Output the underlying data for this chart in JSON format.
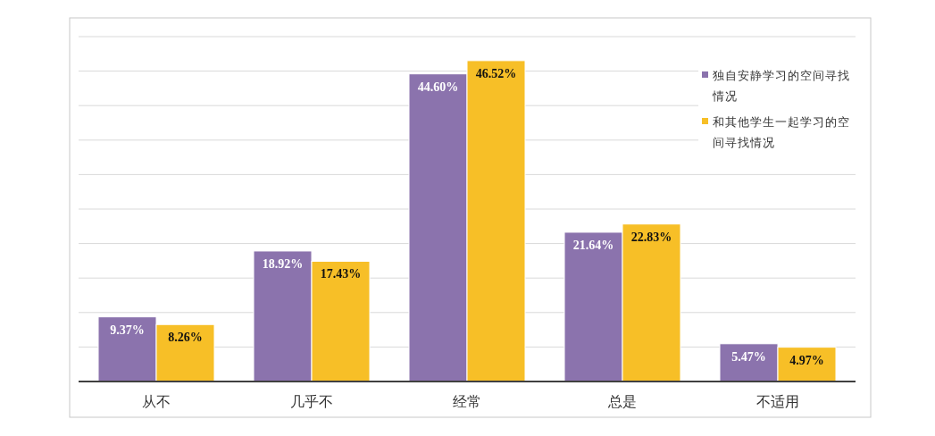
{
  "chart_data": {
    "type": "bar",
    "categories": [
      "从不",
      "几乎不",
      "经常",
      "总是",
      "不适用"
    ],
    "series": [
      {
        "name": "独自安静学习的空间寻找情况",
        "color": "#8b73ad",
        "values": [
          9.37,
          18.92,
          44.6,
          21.64,
          5.47
        ],
        "value_labels": [
          "9.37%",
          "18.92%",
          "44.60%",
          "21.64%",
          "5.47%"
        ]
      },
      {
        "name": "和其他学生一起学习的空间寻找情况",
        "color": "#f7bf27",
        "values": [
          8.26,
          17.43,
          46.52,
          22.83,
          4.97
        ],
        "value_labels": [
          "8.26%",
          "17.43%",
          "46.52%",
          "22.83%",
          "4.97%"
        ]
      }
    ],
    "ylim": [
      0,
      50
    ],
    "yticks": [
      {
        "value": 0,
        "label": null
      },
      {
        "value": 5,
        "label": null
      },
      {
        "value": 10,
        "label": null
      },
      {
        "value": 15,
        "label": null
      },
      {
        "value": 20,
        "label": null
      },
      {
        "value": 25,
        "label": null
      },
      {
        "value": 30,
        "label": null
      },
      {
        "value": 35,
        "label": null
      },
      {
        "value": 40,
        "label": null
      },
      {
        "value": 45,
        "label": null
      },
      {
        "value": 50,
        "label": null
      }
    ],
    "grid": "y",
    "legend": "top right",
    "tick_labels": "x"
  }
}
